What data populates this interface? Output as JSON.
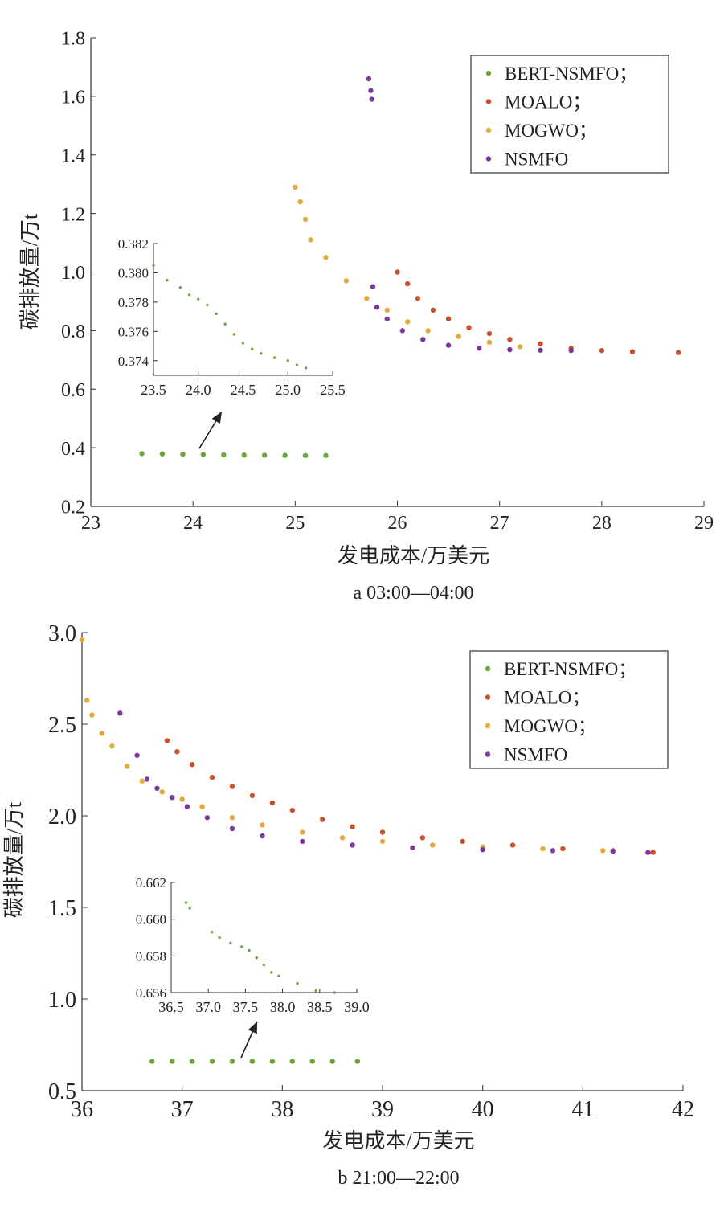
{
  "colors": {
    "BERT-NSMFO": "#6aa63a",
    "MOALO": "#c8502a",
    "MOGWO": "#e3a93a",
    "NSMFO": "#7a3a9c"
  },
  "chart_data": [
    {
      "type": "scatter",
      "caption": "a 03:00—04:00",
      "xlabel": "发电成本/万美元",
      "ylabel": "碳排放量/万t",
      "xlim": [
        23,
        29
      ],
      "ylim": [
        0.2,
        1.8
      ],
      "xticks": [
        23,
        24,
        25,
        26,
        27,
        28,
        29
      ],
      "yticks": [
        0.2,
        0.4,
        0.6,
        0.8,
        1.0,
        1.2,
        1.4,
        1.6,
        1.8
      ],
      "xtick_labels": [
        "23",
        "24",
        "25",
        "26",
        "27",
        "28",
        "29"
      ],
      "ytick_labels": [
        "0.2",
        "0.4",
        "0.6",
        "0.8",
        "1.0",
        "1.2",
        "1.4",
        "1.6",
        "1.8"
      ],
      "legend_position": "top-right",
      "legend": [
        "BERT-NSMFO；",
        "MOALO；",
        "MOGWO；",
        "NSMFO"
      ],
      "series": [
        {
          "name": "BERT-NSMFO",
          "points": [
            [
              23.5,
              0.38
            ],
            [
              23.7,
              0.379
            ],
            [
              23.9,
              0.378
            ],
            [
              24.1,
              0.377
            ],
            [
              24.3,
              0.376
            ],
            [
              24.5,
              0.375
            ],
            [
              24.7,
              0.3745
            ],
            [
              24.9,
              0.374
            ],
            [
              25.1,
              0.3735
            ],
            [
              25.3,
              0.3735
            ]
          ]
        },
        {
          "name": "MOALO",
          "points": [
            [
              26.0,
              1.0
            ],
            [
              26.1,
              0.96
            ],
            [
              26.2,
              0.91
            ],
            [
              26.35,
              0.87
            ],
            [
              26.5,
              0.84
            ],
            [
              26.7,
              0.81
            ],
            [
              26.9,
              0.79
            ],
            [
              27.1,
              0.77
            ],
            [
              27.4,
              0.755
            ],
            [
              27.7,
              0.74
            ],
            [
              28.0,
              0.732
            ],
            [
              28.3,
              0.728
            ],
            [
              28.75,
              0.725
            ]
          ]
        },
        {
          "name": "MOGWO",
          "points": [
            [
              25.0,
              1.29
            ],
            [
              25.05,
              1.24
            ],
            [
              25.1,
              1.18
            ],
            [
              25.15,
              1.11
            ],
            [
              25.3,
              1.05
            ],
            [
              25.5,
              0.97
            ],
            [
              25.7,
              0.91
            ],
            [
              25.9,
              0.87
            ],
            [
              26.1,
              0.83
            ],
            [
              26.3,
              0.8
            ],
            [
              26.6,
              0.78
            ],
            [
              26.9,
              0.76
            ],
            [
              27.2,
              0.745
            ]
          ]
        },
        {
          "name": "NSMFO",
          "points": [
            [
              25.72,
              1.66
            ],
            [
              25.74,
              1.62
            ],
            [
              25.75,
              1.59
            ],
            [
              25.76,
              0.95
            ],
            [
              25.8,
              0.88
            ],
            [
              25.9,
              0.84
            ],
            [
              26.05,
              0.8
            ],
            [
              26.25,
              0.77
            ],
            [
              26.5,
              0.75
            ],
            [
              26.8,
              0.74
            ],
            [
              27.1,
              0.735
            ],
            [
              27.4,
              0.733
            ],
            [
              27.7,
              0.732
            ]
          ]
        }
      ],
      "inset": {
        "series": "BERT-NSMFO",
        "xlim": [
          23.5,
          25.5
        ],
        "ylim": [
          0.373,
          0.382
        ],
        "xticks": [
          23.5,
          24.0,
          24.5,
          25.0,
          25.5
        ],
        "yticks": [
          0.374,
          0.376,
          0.378,
          0.38,
          0.382
        ],
        "xtick_labels": [
          "23.5",
          "24.0",
          "24.5",
          "25.0",
          "25.5"
        ],
        "ytick_labels": [
          "0.374",
          "0.376",
          "0.378",
          "0.380",
          "0.382"
        ],
        "points": [
          [
            23.5,
            0.3805
          ],
          [
            23.65,
            0.3795
          ],
          [
            23.8,
            0.379
          ],
          [
            23.9,
            0.3785
          ],
          [
            24.0,
            0.3782
          ],
          [
            24.1,
            0.3778
          ],
          [
            24.2,
            0.3772
          ],
          [
            24.3,
            0.3765
          ],
          [
            24.4,
            0.3758
          ],
          [
            24.5,
            0.3752
          ],
          [
            24.6,
            0.3748
          ],
          [
            24.7,
            0.3745
          ],
          [
            24.85,
            0.3742
          ],
          [
            25.0,
            0.374
          ],
          [
            25.1,
            0.3737
          ],
          [
            25.2,
            0.3735
          ]
        ]
      }
    },
    {
      "type": "scatter",
      "caption": "b 21:00—22:00",
      "xlabel": "发电成本/万美元",
      "ylabel": "碳排放量/万t",
      "xlim": [
        36,
        42
      ],
      "ylim": [
        0.5,
        3.0
      ],
      "xticks": [
        36,
        37,
        38,
        39,
        40,
        41,
        42
      ],
      "yticks": [
        0.5,
        1.0,
        1.5,
        2.0,
        2.5,
        3.0
      ],
      "xtick_labels": [
        "36",
        "37",
        "38",
        "39",
        "40",
        "41",
        "42"
      ],
      "ytick_labels": [
        "0.5",
        "1.0",
        "1.5",
        "2.0",
        "2.5",
        "3.0"
      ],
      "legend_position": "top-right",
      "legend": [
        "BERT-NSMFO；",
        "MOALO；",
        "MOGWO；",
        "NSMFO"
      ],
      "series": [
        {
          "name": "BERT-NSMFO",
          "points": [
            [
              36.7,
              0.66
            ],
            [
              36.9,
              0.66
            ],
            [
              37.1,
              0.66
            ],
            [
              37.3,
              0.66
            ],
            [
              37.5,
              0.66
            ],
            [
              37.7,
              0.66
            ],
            [
              37.9,
              0.66
            ],
            [
              38.1,
              0.66
            ],
            [
              38.3,
              0.66
            ],
            [
              38.5,
              0.66
            ],
            [
              38.75,
              0.66
            ]
          ]
        },
        {
          "name": "MOALO",
          "points": [
            [
              36.85,
              2.41
            ],
            [
              36.95,
              2.35
            ],
            [
              37.1,
              2.28
            ],
            [
              37.3,
              2.21
            ],
            [
              37.5,
              2.16
            ],
            [
              37.7,
              2.11
            ],
            [
              37.9,
              2.07
            ],
            [
              38.1,
              2.03
            ],
            [
              38.4,
              1.98
            ],
            [
              38.7,
              1.94
            ],
            [
              39.0,
              1.91
            ],
            [
              39.4,
              1.88
            ],
            [
              39.8,
              1.86
            ],
            [
              40.3,
              1.84
            ],
            [
              40.8,
              1.82
            ],
            [
              41.3,
              1.81
            ],
            [
              41.7,
              1.8
            ]
          ]
        },
        {
          "name": "MOGWO",
          "points": [
            [
              36.0,
              2.96
            ],
            [
              36.05,
              2.63
            ],
            [
              36.1,
              2.55
            ],
            [
              36.2,
              2.45
            ],
            [
              36.3,
              2.38
            ],
            [
              36.45,
              2.27
            ],
            [
              36.6,
              2.19
            ],
            [
              36.8,
              2.13
            ],
            [
              37.0,
              2.09
            ],
            [
              37.2,
              2.05
            ],
            [
              37.5,
              1.99
            ],
            [
              37.8,
              1.95
            ],
            [
              38.2,
              1.91
            ],
            [
              38.6,
              1.88
            ],
            [
              39.0,
              1.86
            ],
            [
              39.5,
              1.84
            ],
            [
              40.0,
              1.83
            ],
            [
              40.6,
              1.82
            ],
            [
              41.2,
              1.81
            ]
          ]
        },
        {
          "name": "NSMFO",
          "points": [
            [
              36.38,
              2.56
            ],
            [
              36.55,
              2.33
            ],
            [
              36.65,
              2.2
            ],
            [
              36.75,
              2.15
            ],
            [
              36.9,
              2.1
            ],
            [
              37.05,
              2.05
            ],
            [
              37.25,
              1.99
            ],
            [
              37.5,
              1.93
            ],
            [
              37.8,
              1.89
            ],
            [
              38.2,
              1.86
            ],
            [
              38.7,
              1.84
            ],
            [
              39.3,
              1.825
            ],
            [
              40.0,
              1.815
            ],
            [
              40.7,
              1.81
            ],
            [
              41.3,
              1.805
            ],
            [
              41.65,
              1.8
            ]
          ]
        }
      ],
      "inset": {
        "series": "BERT-NSMFO",
        "xlim": [
          36.5,
          39.0
        ],
        "ylim": [
          0.656,
          0.662
        ],
        "xticks": [
          36.5,
          37.0,
          37.5,
          38.0,
          38.5,
          39.0
        ],
        "yticks": [
          0.656,
          0.658,
          0.66,
          0.662
        ],
        "xtick_labels": [
          "36.5",
          "37.0",
          "37.5",
          "38.0",
          "38.5",
          "39.0"
        ],
        "ytick_labels": [
          "0.656",
          "0.658",
          "0.660",
          "0.662"
        ],
        "points": [
          [
            36.7,
            0.6609
          ],
          [
            36.75,
            0.6606
          ],
          [
            37.05,
            0.6593
          ],
          [
            37.15,
            0.659
          ],
          [
            37.3,
            0.6587
          ],
          [
            37.45,
            0.6585
          ],
          [
            37.55,
            0.6583
          ],
          [
            37.65,
            0.6579
          ],
          [
            37.75,
            0.6575
          ],
          [
            37.85,
            0.6571
          ],
          [
            37.95,
            0.6569
          ],
          [
            38.2,
            0.6565
          ],
          [
            38.45,
            0.6561
          ],
          [
            38.7,
            0.656
          ]
        ]
      }
    }
  ]
}
